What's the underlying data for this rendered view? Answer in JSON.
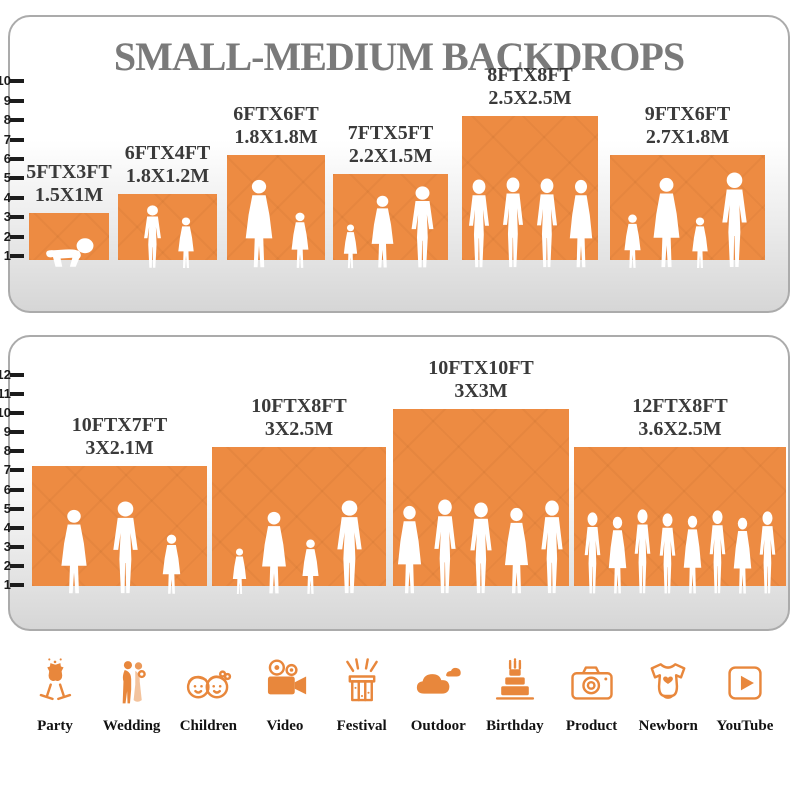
{
  "title": "SMALL-MEDIUM BACKDROPS",
  "colors": {
    "orange": "#ED8B42",
    "iconOrange": "#E8873C",
    "titleGray": "#7A7A7A",
    "labelDark": "#3A3A3A",
    "panelBorder": "#ABABAB",
    "ruler": "#1C1C1C",
    "iconLabel": "#121212",
    "silhouette": "#FFFFFF"
  },
  "panels": [
    {
      "name": "small backdrops",
      "ruler": {
        "min": 1,
        "max": 10
      },
      "backdrops": [
        {
          "size_ft": "5FTX3FT",
          "size_m": "1.5X1M",
          "width_ft": 5,
          "height_ft": 3,
          "people": "crawling baby"
        },
        {
          "size_ft": "6FTX4FT",
          "size_m": "1.8X1.2M",
          "width_ft": 6,
          "height_ft": 4,
          "people": "boy and girl"
        },
        {
          "size_ft": "6FTX6FT",
          "size_m": "1.8X1.8M",
          "width_ft": 6,
          "height_ft": 6,
          "people": "mother holding child and girl"
        },
        {
          "size_ft": "7FTX5FT",
          "size_m": "2.2X1.5M",
          "width_ft": 7,
          "height_ft": 5,
          "people": "toddler, woman and man"
        },
        {
          "size_ft": "8FTX8FT",
          "size_m": "2.5X2.5M",
          "width_ft": 8,
          "height_ft": 8,
          "people": "four posing adults"
        },
        {
          "size_ft": "9FTX6FT",
          "size_m": "2.7X1.8M",
          "width_ft": 9,
          "height_ft": 6,
          "people": "family of four"
        }
      ]
    },
    {
      "name": "medium backdrops",
      "ruler": {
        "min": 1,
        "max": 12
      },
      "backdrops": [
        {
          "size_ft": "10FTX7FT",
          "size_m": "3X2.1M",
          "width_ft": 10,
          "height_ft": 7,
          "people": "woman, man and girl"
        },
        {
          "size_ft": "10FTX8FT",
          "size_m": "3X2.5M",
          "width_ft": 10,
          "height_ft": 8,
          "people": "family of four holding hands"
        },
        {
          "size_ft": "10FTX10FT",
          "size_m": "3X3M",
          "width_ft": 10,
          "height_ft": 10,
          "people": "five adults"
        },
        {
          "size_ft": "12FTX8FT",
          "size_m": "3.6X2.5M",
          "width_ft": 12,
          "height_ft": 8,
          "people": "crowd of eight adults"
        }
      ]
    }
  ],
  "categories": [
    {
      "label": "Party",
      "icon": "party-icon"
    },
    {
      "label": "Wedding",
      "icon": "wedding-icon"
    },
    {
      "label": "Children",
      "icon": "children-icon"
    },
    {
      "label": "Video",
      "icon": "video-icon"
    },
    {
      "label": "Festival",
      "icon": "festival-icon"
    },
    {
      "label": "Outdoor",
      "icon": "outdoor-icon"
    },
    {
      "label": "Birthday",
      "icon": "birthday-icon"
    },
    {
      "label": "Product",
      "icon": "product-icon"
    },
    {
      "label": "Newborn",
      "icon": "newborn-icon"
    },
    {
      "label": "YouTube",
      "icon": "youtube-icon"
    }
  ]
}
